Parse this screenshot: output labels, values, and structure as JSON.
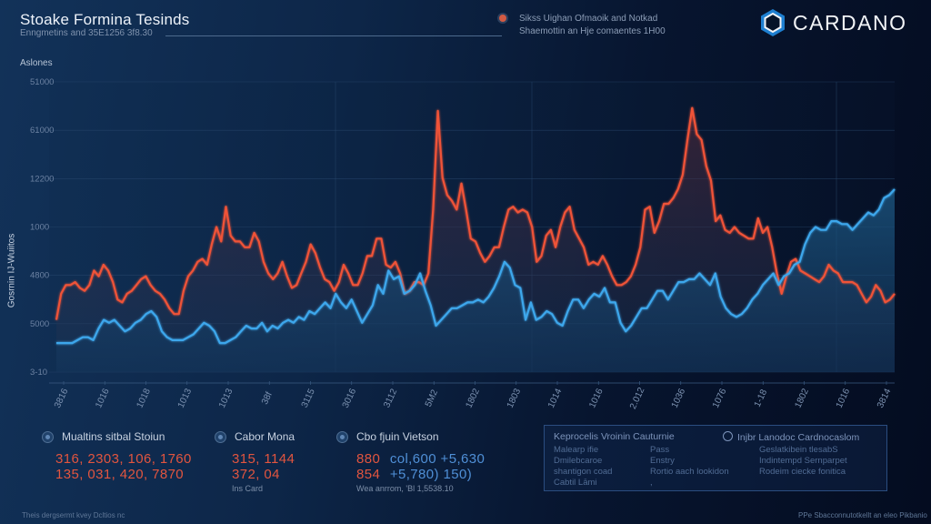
{
  "header": {
    "title": "Stoake Formina Tesinds",
    "subtitle": "Enngmetins and 35E1256 3f8.30",
    "note_lines": [
      "Sikss Uighan Ofmaoik and Notkad",
      "Shaemottin an Hje comaentes 1H00"
    ],
    "brand": "CARDANO",
    "brand_color": "#2a8fd8"
  },
  "chart_data": {
    "type": "line",
    "title": "Stoake Formina Tesinds",
    "subtitle": "Enngmetins and 35E1256 3f8.30",
    "axis_title": "Aslones",
    "ylabel": "Gosrnin IJ-Wuiitos",
    "xlabel": "",
    "y_tick_labels": [
      "51000",
      "61000",
      "12200",
      "1000",
      "4800",
      "5000",
      "3-10"
    ],
    "x_tick_labels": [
      "3816",
      "1016",
      "1018",
      "1013",
      "1013",
      "38f",
      "3115",
      "3016",
      "3112",
      "5M2",
      "1802",
      "1803",
      "1014",
      "1016",
      "2.012",
      "1036",
      "1076",
      "1-18",
      "1802",
      "1016",
      "3814"
    ],
    "grid": true,
    "legend_position": "bottom",
    "ylim": [
      0,
      100
    ],
    "series": [
      {
        "name": "Mualtins sitbal Stoiun",
        "color": "#ef5237",
        "values": [
          18,
          27,
          30,
          30,
          31,
          29,
          28,
          30,
          35,
          33,
          37,
          35,
          31,
          25,
          24,
          27,
          28,
          30,
          32,
          33,
          30,
          28,
          27,
          25,
          22,
          20,
          20,
          28,
          33,
          35,
          38,
          39,
          37,
          44,
          50,
          45,
          57,
          47,
          45,
          45,
          43,
          43,
          48,
          45,
          38,
          34,
          32,
          34,
          38,
          33,
          29,
          30,
          34,
          38,
          44,
          41,
          36,
          32,
          31,
          28,
          31,
          37,
          34,
          30,
          30,
          34,
          40,
          40,
          46,
          46,
          37,
          36,
          38,
          34,
          27,
          28,
          31,
          31,
          30,
          34,
          56,
          90,
          67,
          61,
          59,
          56,
          65,
          56,
          46,
          45,
          41,
          38,
          40,
          43,
          43,
          50,
          56,
          57,
          55,
          56,
          55,
          50,
          38,
          40,
          47,
          49,
          43,
          50,
          55,
          57,
          49,
          46,
          43,
          37,
          38,
          37,
          40,
          37,
          33,
          30,
          30,
          31,
          33,
          37,
          43,
          56,
          57,
          48,
          52,
          58,
          58,
          60,
          63,
          68,
          80,
          91,
          82,
          80,
          71,
          66,
          52,
          54,
          49,
          48,
          50,
          48,
          47,
          46,
          46,
          53,
          48,
          50,
          43,
          34,
          27,
          33,
          38,
          39,
          35,
          34,
          33,
          32,
          31,
          33,
          37,
          35,
          34,
          31,
          31,
          31,
          30,
          27,
          24,
          26,
          30,
          28,
          24,
          25,
          27
        ]
      },
      {
        "name": "Cabor Mona",
        "color": "#3ea7ec",
        "values": [
          10,
          10,
          10,
          10,
          11,
          12,
          12,
          11,
          15,
          18,
          17,
          18,
          16,
          14,
          15,
          17,
          18,
          20,
          21,
          19,
          14,
          12,
          11,
          11,
          11,
          12,
          13,
          15,
          17,
          16,
          14,
          10,
          10,
          11,
          12,
          14,
          16,
          15,
          15,
          17,
          14,
          16,
          15,
          17,
          18,
          17,
          19,
          18,
          21,
          20,
          22,
          24,
          22,
          27,
          24,
          22,
          25,
          21,
          17,
          20,
          23,
          30,
          27,
          35,
          32,
          33,
          27,
          28,
          30,
          34,
          28,
          23,
          16,
          18,
          20,
          22,
          22,
          23,
          24,
          24,
          25,
          24,
          26,
          29,
          33,
          38,
          36,
          30,
          29,
          18,
          24,
          18,
          19,
          21,
          20,
          17,
          16,
          21,
          25,
          25,
          22,
          25,
          27,
          26,
          29,
          24,
          24,
          17,
          14,
          16,
          19,
          22,
          22,
          25,
          28,
          28,
          25,
          28,
          31,
          31,
          32,
          32,
          34,
          32,
          30,
          34,
          26,
          22,
          20,
          19,
          20,
          22,
          25,
          27,
          30,
          32,
          34,
          30,
          33,
          34,
          37,
          38,
          44,
          48,
          50,
          49,
          49,
          52,
          52,
          51,
          51,
          49,
          51,
          53,
          55,
          54,
          56,
          60,
          61,
          63
        ]
      }
    ]
  },
  "legend": [
    {
      "label": "Mualtins sitbal Stoiun",
      "values": [
        "316, 2303, 106, 1760",
        "135, 031, 420, 7870"
      ]
    },
    {
      "label": "Cabor Mona",
      "values": [
        "315, 1144",
        "372, 04"
      ],
      "note": "Ins Card"
    },
    {
      "label": "Cbo fjuin Vietson",
      "red_values": [
        "880",
        "854"
      ],
      "blue_values": [
        "col,600 +5,630",
        "+5,780) 150)"
      ],
      "note": "Wea anrrom, 'Bl 1,5538.10"
    }
  ],
  "panel": {
    "heading_left": "Keprocelis Vroinin Cauturnie",
    "heading_right": "Injbr Lanodoc Cardnocaslom",
    "col1": [
      "Malearp ifie",
      "Dmilebcaroe",
      "shantigon coad",
      "Cabtil Lāmi"
    ],
    "col2": [
      "Pass",
      "Enstry",
      "Rortio aach lookidon",
      ","
    ],
    "col3": [
      "Geslatkibein tlesabS",
      "Indintempd Sernparpet",
      "Rodeim ciecke fonitica"
    ]
  },
  "footer": {
    "left": "Theis dergsermt kvey Dcltios nc",
    "right": "PPe Sbacconnutotkellt an eleo Pikbanio"
  }
}
